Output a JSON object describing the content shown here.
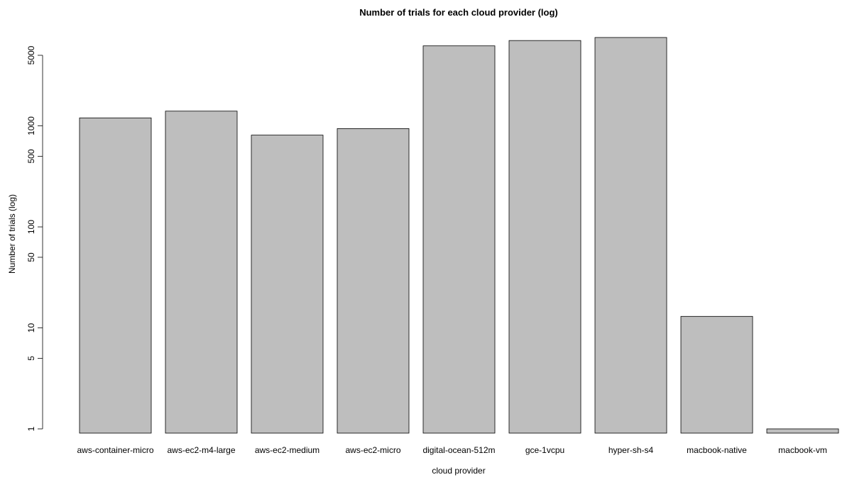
{
  "chart_data": {
    "type": "bar",
    "title": "Number of trials for each cloud provider (log)",
    "xlabel": "cloud provider",
    "ylabel": "Number of trials (log)",
    "yscale": "log",
    "categories": [
      "aws-container-micro",
      "aws-ec2-m4-large",
      "aws-ec2-medium",
      "aws-ec2-micro",
      "digital-ocean-512m",
      "gce-1vcpu",
      "hyper-sh-s4",
      "macbook-native",
      "macbook-vm"
    ],
    "values": [
      1200,
      1400,
      810,
      940,
      6200,
      7000,
      7500,
      13,
      1
    ],
    "yticks": [
      1,
      5,
      10,
      50,
      100,
      500,
      1000,
      5000
    ],
    "ytick_labels": [
      "1",
      "5",
      "10",
      "50",
      "100",
      "500",
      "1000",
      "5000"
    ],
    "grid": false,
    "legend": false,
    "bar_color": "#bebebe"
  }
}
